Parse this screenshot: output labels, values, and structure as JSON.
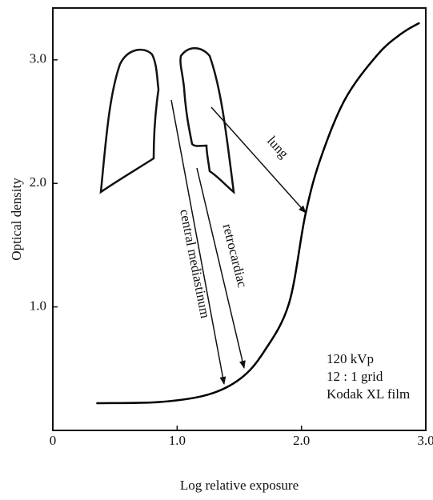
{
  "chart_data": {
    "type": "line",
    "x_label": "Log relative exposure",
    "y_label": "Optical density",
    "x": [
      0.35,
      0.86,
      1.25,
      1.51,
      1.7,
      1.9,
      2.03,
      2.15,
      2.35,
      2.61,
      2.8,
      2.95
    ],
    "series": [
      {
        "color": "#000000",
        "values": [
          0.22,
          0.23,
          0.29,
          0.42,
          0.64,
          1.03,
          1.74,
          2.19,
          2.68,
          3.04,
          3.21,
          3.3
        ]
      }
    ],
    "xlim": [
      0,
      3.0
    ],
    "ylim": [
      0,
      3.42
    ],
    "xticks": [
      0,
      {
        "value": 1,
        "label": "1.0"
      },
      {
        "value": 2,
        "label": "2.0"
      },
      {
        "value": 3,
        "label": "3.0"
      }
    ],
    "yticks": [
      {
        "value": 1,
        "label": "1.0"
      },
      {
        "value": 2,
        "label": "2.0"
      },
      {
        "value": 3,
        "label": "3.0"
      }
    ],
    "annotations": [
      "lung",
      "retrocardiac",
      "central mediastinum",
      "120 kVp",
      "12 : 1 grid",
      "Kodak XL film"
    ]
  }
}
